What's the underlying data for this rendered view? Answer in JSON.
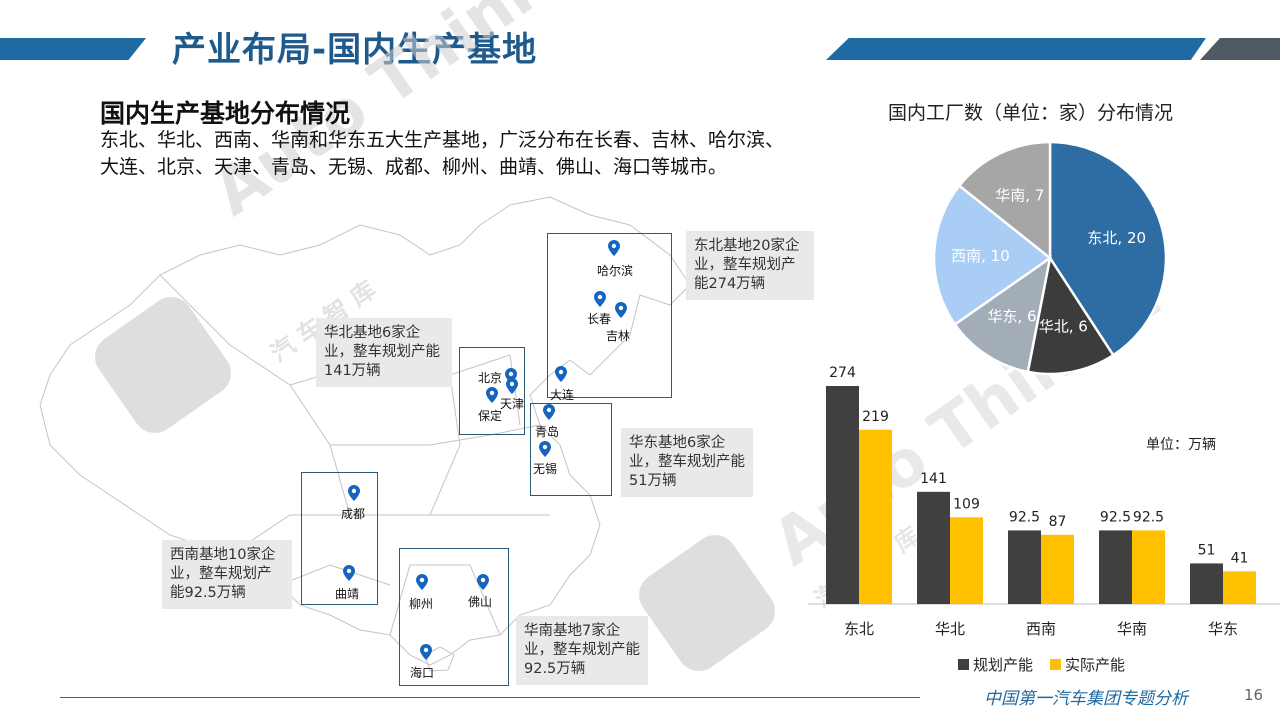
{
  "header": {
    "title": "产业布局-国内生产基地",
    "accent": "#1f6aa2",
    "accent_dark": "#505a64"
  },
  "intro": {
    "heading": "国内生产基地分布情况",
    "text": "东北、华北、西南、华南和华东五大生产基地，广泛分布在长春、吉林、哈尔滨、大连、北京、天津、青岛、无锡、成都、柳州、曲靖、佛山、海口等城市。"
  },
  "map": {
    "callouts": [
      {
        "id": "dongbei",
        "text": "东北基地20家企业，整车规划产能274万辆"
      },
      {
        "id": "huabei",
        "text": "华北基地6家企业，整车规划产能141万辆"
      },
      {
        "id": "huadong",
        "text": "华东基地6家企业，整车规划产能51万辆"
      },
      {
        "id": "xinan",
        "text": "西南基地10家企业，整车规划产能92.5万辆"
      },
      {
        "id": "huanan",
        "text": "华南基地7家企业，整车规划产能92.5万辆"
      }
    ],
    "cities": [
      "哈尔滨",
      "长春",
      "吉林",
      "北京",
      "天津",
      "保定",
      "大连",
      "青岛",
      "无锡",
      "成都",
      "曲靖",
      "柳州",
      "佛山",
      "海口"
    ],
    "pin_color": "#1565c0"
  },
  "watermark": {
    "brand": "Auto Thinker",
    "cn": "汽 车 智 库"
  },
  "chart_data": [
    {
      "type": "pie",
      "title": "国内工厂数（单位：家）分布情况",
      "slices": [
        {
          "label": "东北",
          "value": 20,
          "color": "#2e6da4"
        },
        {
          "label": "华北",
          "value": 6,
          "color": "#3c3c3c"
        },
        {
          "label": "华东",
          "value": 6,
          "color": "#a3adb8"
        },
        {
          "label": "西南",
          "value": 10,
          "color": "#a9cdf4"
        },
        {
          "label": "华南",
          "value": 7,
          "color": "#a6a6a6"
        }
      ]
    },
    {
      "type": "bar",
      "categories": [
        "东北",
        "华北",
        "西南",
        "华南",
        "华东"
      ],
      "series": [
        {
          "name": "规划产能",
          "values": [
            274,
            141,
            92.5,
            92.5,
            51
          ],
          "color": "#404040"
        },
        {
          "name": "实际产能",
          "values": [
            219,
            109,
            87,
            92.5,
            41
          ],
          "color": "#ffc000"
        }
      ],
      "unit_label": "单位：万辆",
      "ylim": [
        0,
        274
      ],
      "legend": "bottom"
    }
  ],
  "footer": {
    "text": "中国第一汽车集团专题分析",
    "page": "16"
  }
}
